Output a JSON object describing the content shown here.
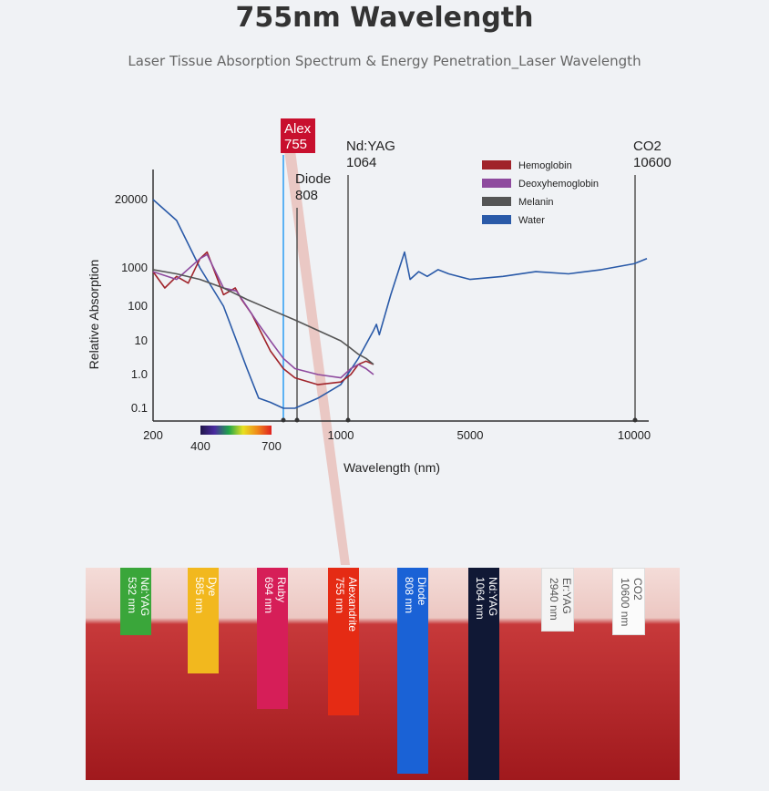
{
  "title": "755nm Wavelength",
  "subtitle": "Laser Tissue Absorption Spectrum & Energy Penetration_Laser Wavelength",
  "chart_data": {
    "type": "line",
    "xlabel": "Wavelength (nm)",
    "ylabel": "Relative Absorption",
    "x_ticks": [
      "200",
      "1000",
      "5000",
      "10000"
    ],
    "y_ticks": [
      "20000",
      "1000",
      "100",
      "10",
      "1.0",
      "0.1"
    ],
    "visible_spectrum": {
      "start_label": "400",
      "end_label": "700"
    },
    "legend": [
      {
        "name": "Hemoglobin",
        "color": "#a0232a"
      },
      {
        "name": "Deoxyhemoglobin",
        "color": "#8e4a9e"
      },
      {
        "name": "Melanin",
        "color": "#555555"
      },
      {
        "name": "Water",
        "color": "#2a5aa8"
      }
    ],
    "markers": [
      {
        "label": "Alex",
        "value": "755",
        "highlight": true
      },
      {
        "label": "Diode",
        "value": "808"
      },
      {
        "label": "Nd:YAG",
        "value": "1064"
      },
      {
        "label": "CO2",
        "value": "10600"
      }
    ],
    "series": [
      {
        "name": "Water",
        "x": [
          200,
          300,
          400,
          500,
          600,
          650,
          700,
          755,
          800,
          900,
          1000,
          1200,
          1400,
          1450,
          1500,
          1700,
          1940,
          2200,
          2600,
          3000,
          3500,
          4000,
          5000,
          6000,
          7000,
          8000,
          9000,
          10000,
          10600
        ],
        "y": [
          20000,
          8000,
          1000,
          100,
          1.5,
          0.2,
          0.15,
          0.1,
          0.1,
          0.2,
          0.5,
          3,
          20,
          30,
          15,
          200,
          2000,
          500,
          800,
          600,
          900,
          700,
          500,
          600,
          800,
          700,
          900,
          1200,
          1500
        ]
      },
      {
        "name": "Hemoglobin",
        "x": [
          200,
          250,
          300,
          350,
          400,
          430,
          500,
          550,
          577,
          620,
          700,
          755,
          800,
          900,
          1000,
          1100,
          1200,
          1300,
          1400
        ],
        "y": [
          800,
          300,
          600,
          400,
          1500,
          2000,
          200,
          300,
          150,
          60,
          5,
          1.5,
          0.8,
          0.5,
          0.6,
          1,
          2,
          2.5,
          2
        ]
      },
      {
        "name": "Deoxyhemoglobin",
        "x": [
          200,
          300,
          400,
          430,
          500,
          555,
          650,
          700,
          755,
          800,
          900,
          1000,
          1100,
          1200,
          1300,
          1400
        ],
        "y": [
          800,
          500,
          1500,
          1800,
          300,
          250,
          30,
          10,
          3,
          1.5,
          1,
          0.8,
          1.5,
          2,
          1.5,
          1
        ]
      },
      {
        "name": "Melanin",
        "x": [
          200,
          300,
          400,
          500,
          600,
          700,
          800,
          900,
          1000,
          1100,
          1200,
          1300,
          1400
        ],
        "y": [
          900,
          700,
          500,
          300,
          150,
          80,
          40,
          20,
          10,
          6,
          4,
          3,
          2
        ]
      }
    ]
  },
  "wavelength_bands": [
    {
      "label": "Nd:YAG\n532 nm",
      "color": "#3aa63a"
    },
    {
      "label": "Dye\n585 nm",
      "color": "#f2b81e"
    },
    {
      "label": "Ruby\n694 nm",
      "color": "#d61e58"
    },
    {
      "label": "Alexandrite\n755 nm",
      "color": "#e52b14"
    },
    {
      "label": "Diode\n808 nm",
      "color": "#1a62d6"
    },
    {
      "label": "Nd:YAG\n1064 nm",
      "color": "#101835"
    },
    {
      "label": "Er:YAG\n2940 nm",
      "color": "#f4f4f4"
    },
    {
      "label": "CO2\n10600 nm",
      "color": "#fbfbfb"
    }
  ]
}
